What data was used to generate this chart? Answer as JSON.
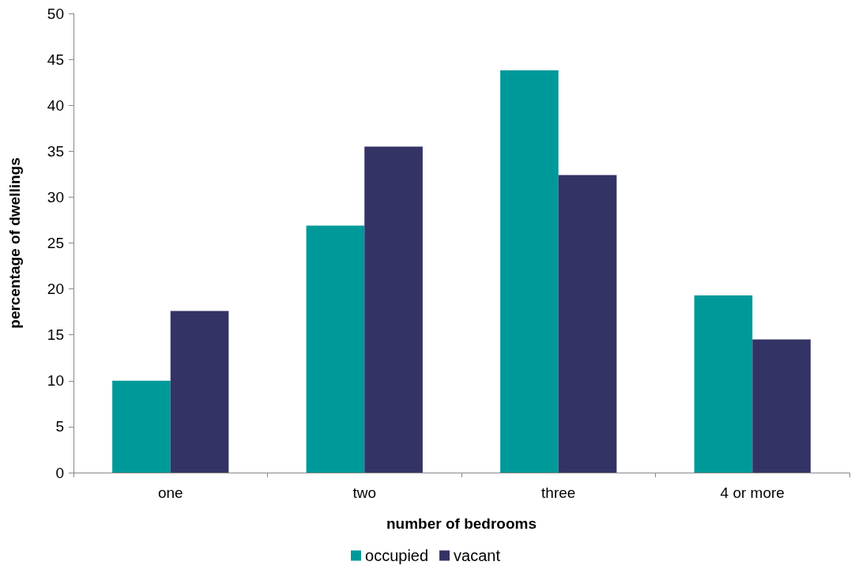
{
  "chart_data": {
    "type": "bar",
    "xlabel": "number of bedrooms",
    "ylabel": "percentage of dwellings",
    "categories": [
      "one",
      "two",
      "three",
      "4 or more"
    ],
    "series": [
      {
        "name": "occupied",
        "color": "#009999",
        "values": [
          10.0,
          26.9,
          43.8,
          19.3
        ]
      },
      {
        "name": "vacant",
        "color": "#333366",
        "values": [
          17.6,
          35.5,
          32.4,
          14.5
        ]
      }
    ],
    "ylim": [
      0,
      50
    ],
    "yticks": [
      0,
      5,
      10,
      15,
      20,
      25,
      30,
      35,
      40,
      45,
      50
    ],
    "grid": false,
    "legend": "bottom"
  }
}
